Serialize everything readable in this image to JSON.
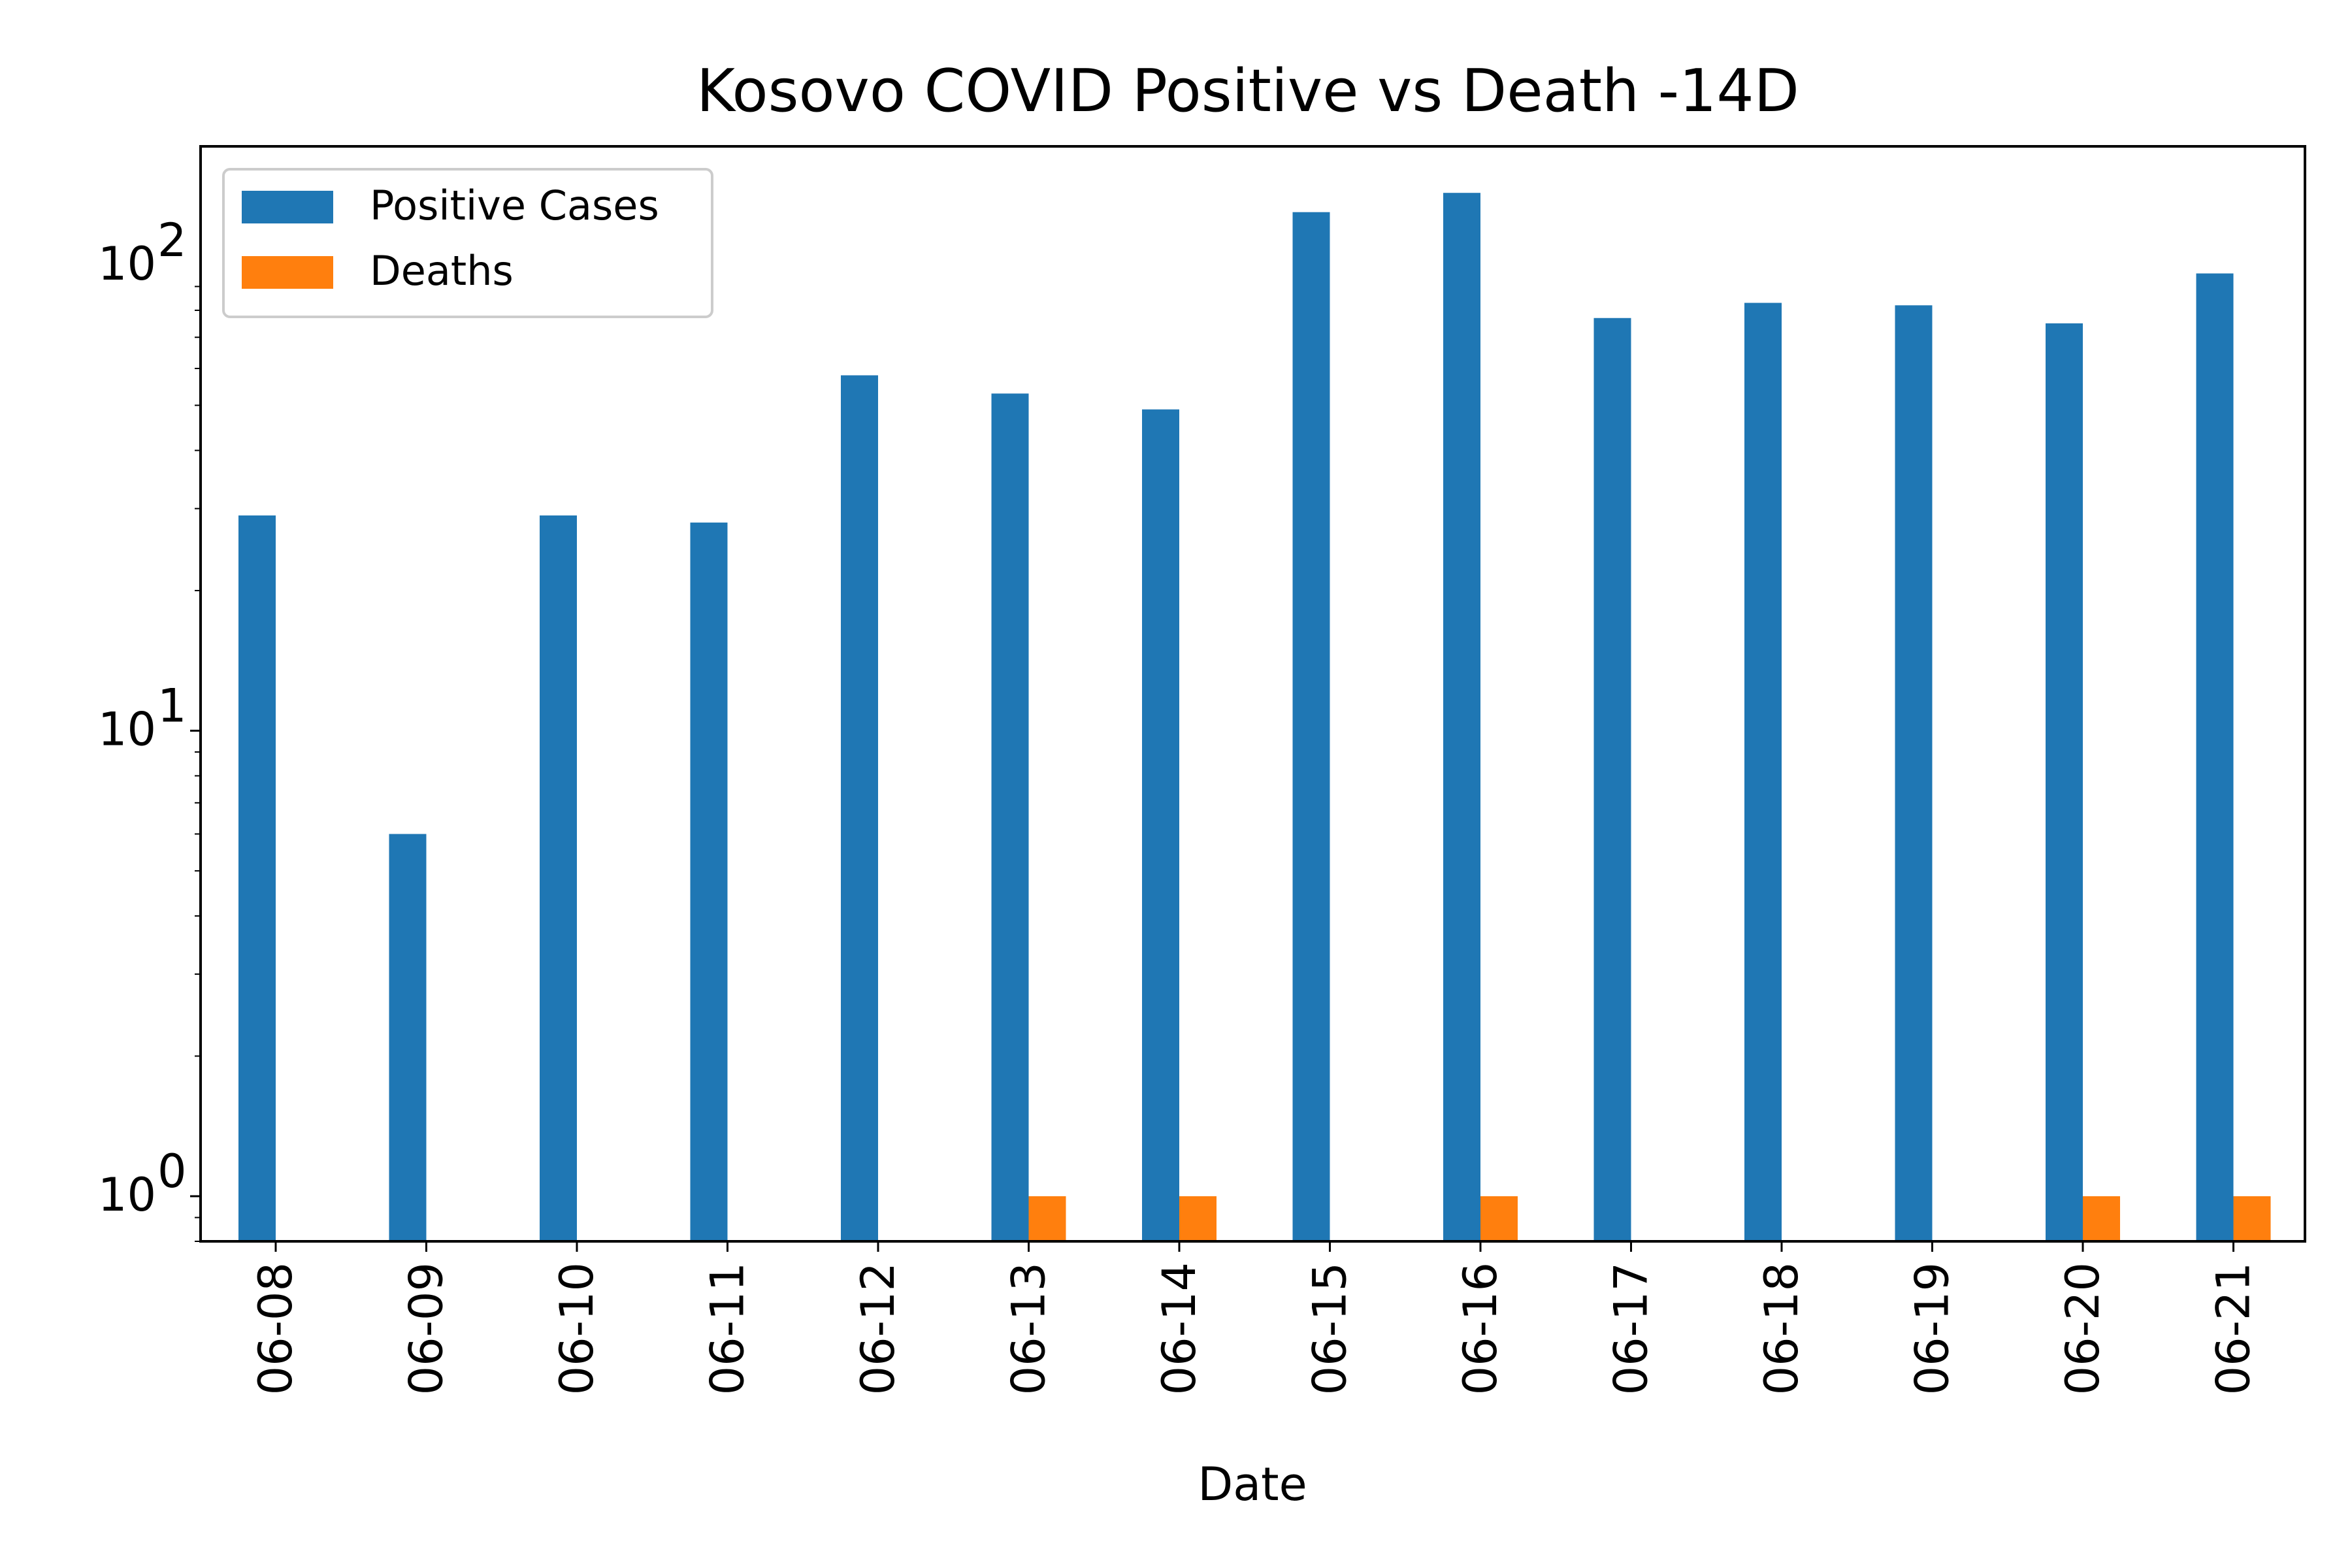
{
  "chart_data": {
    "type": "bar",
    "title": "Kosovo COVID Positive vs Death -14D",
    "xlabel": "Date",
    "ylabel": "",
    "yscale": "log",
    "ylim": [
      0.8,
      180
    ],
    "grid": false,
    "legend_position": "top-left",
    "categories": [
      "06-08",
      "06-09",
      "06-10",
      "06-11",
      "06-12",
      "06-13",
      "06-14",
      "06-15",
      "06-16",
      "06-17",
      "06-18",
      "06-19",
      "06-20",
      "06-21"
    ],
    "series": [
      {
        "name": "Positive Cases",
        "color": "#1f77b4",
        "values": [
          29,
          6,
          29,
          28,
          58,
          53,
          49,
          130,
          143,
          77,
          83,
          82,
          75,
          96
        ]
      },
      {
        "name": "Deaths",
        "color": "#ff7f0e",
        "values": [
          0,
          0,
          0,
          0,
          0,
          1,
          1,
          0,
          1,
          0,
          0,
          0,
          1,
          1
        ]
      }
    ],
    "y_ticks": [
      {
        "value": 1,
        "base": "10",
        "exp": "0"
      },
      {
        "value": 10,
        "base": "10",
        "exp": "1"
      },
      {
        "value": 100,
        "base": "10",
        "exp": "2"
      }
    ]
  }
}
